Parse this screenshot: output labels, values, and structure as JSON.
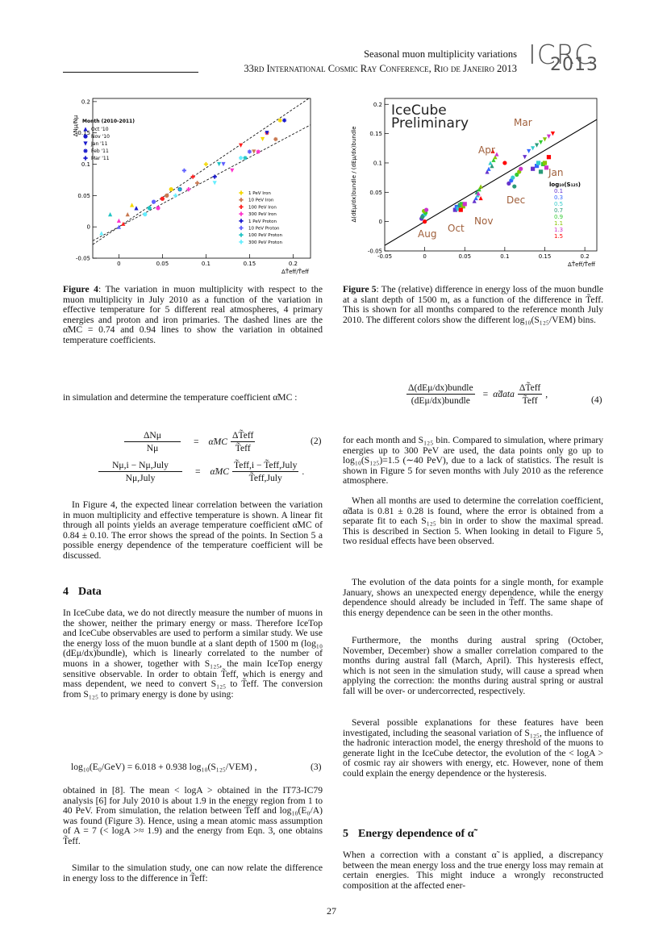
{
  "header": {
    "running_title": "Seasonal muon multiplicity variations",
    "conference": "33rd International Cosmic Ray Conference, Rio de Janeiro 2013",
    "logo_top": "ICRC",
    "logo_bottom": "2013"
  },
  "figure4": {
    "type": "scatter",
    "xlim": [
      -0.03,
      0.22
    ],
    "ylim": [
      -0.05,
      0.205
    ],
    "xticks": [
      0,
      0.05,
      0.1,
      0.15,
      0.2
    ],
    "yticks": [
      -0.05,
      0,
      0.05,
      0.1,
      0.15,
      0.2
    ],
    "x_label": "ΔT̃eff/T̃eff",
    "y_label": "ΔNμ/Nμ",
    "month_legend": {
      "title": "Month (2010-2011)",
      "months": [
        "Oct '10",
        "Nov '10",
        "Jan '11",
        "Feb '11",
        "Mar '11"
      ]
    },
    "fit_slopes": [
      0.74,
      0.94
    ],
    "series": [
      {
        "name": "1 PeV Iron",
        "color": "#f5d800",
        "x": [
          0.015,
          0.06,
          0.165,
          0.185,
          0.1
        ],
        "y": [
          0.035,
          0.06,
          0.14,
          0.17,
          0.1
        ]
      },
      {
        "name": "10 PeV Iron",
        "color": "#c87850",
        "x": [
          0.01,
          0.055,
          0.155,
          0.18,
          0.09
        ],
        "y": [
          0.02,
          0.05,
          0.12,
          0.14,
          0.07
        ]
      },
      {
        "name": "100 PeV Iron",
        "color": "#ff2020",
        "x": [
          0.005,
          0.05,
          0.14,
          0.17,
          0.085
        ],
        "y": [
          0.005,
          0.045,
          0.13,
          0.15,
          0.08
        ]
      },
      {
        "name": "300 PeV Iron",
        "color": "#ff33cc",
        "x": [
          0.0,
          0.045,
          0.13,
          0.16,
          0.08
        ],
        "y": [
          0.01,
          0.03,
          0.09,
          0.12,
          0.06
        ]
      },
      {
        "name": "1 PeV Proton",
        "color": "#1a1acc",
        "x": [
          0.02,
          0.07,
          0.17,
          0.19,
          0.11
        ],
        "y": [
          0.03,
          0.06,
          0.15,
          0.17,
          0.08
        ]
      },
      {
        "name": "10 PeV Proton",
        "color": "#6060ff",
        "x": [
          0.0,
          0.04,
          0.12,
          0.15,
          0.075
        ],
        "y": [
          0.0,
          0.04,
          0.1,
          0.12,
          0.09
        ]
      },
      {
        "name": "100 PeV Proton",
        "color": "#22c4c4",
        "x": [
          -0.01,
          0.035,
          0.115,
          0.145,
          0.07
        ],
        "y": [
          0.02,
          0.03,
          0.1,
          0.11,
          0.06
        ]
      },
      {
        "name": "300 PeV Proton",
        "color": "#66eeff",
        "x": [
          -0.02,
          0.03,
          0.11,
          0.14,
          0.065
        ],
        "y": [
          -0.01,
          0.02,
          0.07,
          0.11,
          0.05
        ]
      }
    ],
    "caption": {
      "label": "Figure 4",
      "text": ": The variation in muon multiplicity with respect to the muon multiplicity in July 2010 as a function of the variation in effective temperature for 5 different real atmospheres, 4 primary energies and proton and iron primaries. The dashed lines are the α̃MC = 0.74 and 0.94 lines to show the variation in obtained temperature coefficients."
    }
  },
  "figure5": {
    "type": "scatter",
    "xlim": [
      -0.05,
      0.215
    ],
    "ylim": [
      -0.05,
      0.21
    ],
    "xticks": [
      -0.05,
      0,
      0.05,
      0.1,
      0.15,
      0.2
    ],
    "yticks": [
      -0.05,
      0,
      0.05,
      0.1,
      0.15,
      0.2
    ],
    "x_label": "ΔT̃eff/T̃eff",
    "y_label": "Δ(dEμ/dx)bundle / (dEμ/dx)bundle",
    "annotations": [
      "IceCube",
      "Preliminary",
      "Mar",
      "Apr",
      "Jan",
      "Dec",
      "Nov",
      "Oct",
      "Aug"
    ],
    "legend_title": "log₁₀(S₁₂₅)",
    "fit_slope": 0.81,
    "series": [
      {
        "name": "0.1",
        "color": "#6633cc",
        "x": [
          -0.004,
          0.038,
          0.062,
          0.105,
          0.135,
          0.125,
          0.078
        ],
        "y": [
          0.005,
          0.02,
          0.035,
          0.065,
          0.09,
          0.11,
          0.085
        ]
      },
      {
        "name": "0.3",
        "color": "#3366ff",
        "x": [
          -0.002,
          0.04,
          0.064,
          0.108,
          0.14,
          0.13,
          0.08
        ],
        "y": [
          0.01,
          0.025,
          0.04,
          0.07,
          0.095,
          0.12,
          0.09
        ]
      },
      {
        "name": "0.5",
        "color": "#33cccc",
        "x": [
          0.0,
          0.042,
          0.066,
          0.11,
          0.142,
          0.135,
          0.082
        ],
        "y": [
          0.012,
          0.022,
          0.045,
          0.075,
          0.1,
          0.125,
          0.1
        ]
      },
      {
        "name": "0.7",
        "color": "#2a9a78",
        "x": [
          -0.003,
          0.044,
          0.065,
          0.112,
          0.145,
          0.14,
          0.084
        ],
        "y": [
          0.008,
          0.028,
          0.05,
          0.06,
          0.085,
          0.13,
          0.095
        ]
      },
      {
        "name": "0.9",
        "color": "#33cc33",
        "x": [
          0.001,
          0.046,
          0.068,
          0.115,
          0.148,
          0.145,
          0.086
        ],
        "y": [
          0.015,
          0.03,
          0.055,
          0.08,
          0.098,
          0.135,
          0.105
        ]
      },
      {
        "name": "1.1",
        "color": "#88c400",
        "x": [
          -0.001,
          0.048,
          0.07,
          0.118,
          0.15,
          0.15,
          0.088
        ],
        "y": [
          0.018,
          0.026,
          0.06,
          0.085,
          0.1,
          0.14,
          0.11
        ]
      },
      {
        "name": "1.3",
        "color": "#cc33cc",
        "x": [
          0.002,
          0.05,
          0.067,
          0.12,
          0.152,
          0.155,
          0.09
        ],
        "y": [
          0.02,
          0.03,
          0.048,
          0.09,
          0.092,
          0.145,
          0.115
        ]
      },
      {
        "name": "1.5",
        "color": "#ff0000",
        "x": [
          0.0,
          0.045,
          0.07,
          0.1,
          0.155,
          0.16,
          0.085
        ],
        "y": [
          0.0,
          0.02,
          0.04,
          0.1,
          0.11,
          0.15,
          0.12
        ]
      }
    ],
    "caption": {
      "label": "Figure 5",
      "text": ": The (relative) difference in energy loss of the muon bundle at a slant depth of 1500 m, as a function of the difference in T̃eff. This is shown for all months compared to the reference month July 2010. The different colors show the different log₁₀(S₁₂₅/VEM) bins."
    }
  },
  "left_column": {
    "p1": "in simulation and determine the temperature coefficient α̃MC :",
    "eq2": {
      "rows": [
        {
          "lhs_num": "ΔNμ",
          "lhs_den": "Nμ",
          "eq": "=",
          "coef": "α̃MC",
          "rhs_num": "ΔT̃eff",
          "rhs_den": "T̃eff"
        },
        {
          "lhs_num": "Nμ,i − Nμ,July",
          "lhs_den": "Nμ,July",
          "eq": "=",
          "coef": "α̃MC",
          "rhs_num": "T̃eff,i − T̃eff,July",
          "rhs_den": "T̃eff,July",
          "end": "."
        }
      ],
      "number": "(2)"
    },
    "p2": "In Figure 4, the expected linear correlation between the variation in muon multiplicity and effective temperature is shown. A linear fit through all points yields an average temperature coefficient α̃MC of 0.84 ± 0.10. The error shows the spread of the points. In Section 5 a possible energy dependence of the temperature coefficient will be discussed.",
    "section4": {
      "number": "4",
      "title": "Data"
    },
    "p3": "In IceCube data, we do not directly measure the number of muons in the shower, neither the primary energy or mass. Therefore IceTop and IceCube observables are used to perform a similar study. We use the energy loss of the muon bundle at a slant depth of 1500 m (log₁₀ (dEμ/dx)bundle), which is linearly correlated to the number of muons in a shower, together with S₁₂₅, the main IceTop energy sensitive observable. In order to obtain T̃eff, which is energy and mass dependent, we need to convert S₁₂₅ to T̃eff. The conversion from S₁₂₅ to primary energy is done by using:",
    "eq3": {
      "text": "log₁₀(E₀/GeV) = 6.018 + 0.938 log₁₀(S₁₂₅/VEM) ,",
      "number": "(3)"
    },
    "p4": "obtained in [8]. The mean < logA > obtained in the IT73-IC79 analysis [6] for July 2010 is about 1.9 in the energy region from 1 to 40 PeV. From simulation, the relation between T̃eff and log₁₀(E₀/A) was found (Figure 3). Hence, using a mean atomic mass assumption of A = 7 (< logA >≈ 1.9) and the energy from Eqn. 3, one obtains T̃eff.",
    "p5": "Similar to the simulation study, one can now relate the difference in energy loss to the difference in T̃eff:"
  },
  "right_column": {
    "eq4": {
      "lhs_num": "Δ(dEμ/dx)bundle",
      "lhs_den": "(dEμ/dx)bundle",
      "eq": "=",
      "coef": "α̃data",
      "rhs_num": "ΔT̃eff",
      "rhs_den": "T̃eff",
      "end": ",",
      "number": "(4)"
    },
    "p1": "for each month and S₁₂₅ bin. Compared to simulation, where primary energies up to 300 PeV are used, the data points only go up to log₁₀(S₁₂₅)=1.5 (∼40 PeV), due to a lack of statistics. The result is shown in Figure 5 for seven months with July 2010 as the reference atmosphere.",
    "p2": "When all months are used to determine the correlation coefficient, α̃data is 0.81 ± 0.28 is found, where the error is obtained from a separate fit to each S₁₂₅ bin in order to show the maximal spread. This is described in Section 5. When looking in detail to Figure 5, two residual effects have been observed.",
    "p3": "The evolution of the data points for a single month, for example January, shows an unexpected energy dependence, while the energy dependence should already be included in T̃eff. The same shape of this energy dependence can be seen in the other months.",
    "p4": "Furthermore, the months during austral spring (October, November, December) show a smaller correlation compared to the months during austral fall (March, April). This hysteresis effect, which is not seen in the simulation study, will cause a spread when applying the correction: the months during austral spring or austral fall will be over- or undercorrected, respectively.",
    "p5": "Several possible explanations for these features have been investigated, including the seasonal variation of S₁₂₅, the influence of the hadronic interaction model, the energy threshold of the muons to generate light in the IceCube detector, the evolution of the < logA > of cosmic ray air showers with energy, etc. However, none of them could explain the energy dependence or the hysteresis.",
    "section5": {
      "number": "5",
      "title": "Energy dependence of α̃"
    },
    "p6": "When a correction with a constant α̃ is applied, a discrepancy between the mean energy loss and the true energy loss may remain at certain energies. This might induce a wrongly reconstructed composition at the affected ener-"
  },
  "footer": {
    "page_number": "27"
  }
}
